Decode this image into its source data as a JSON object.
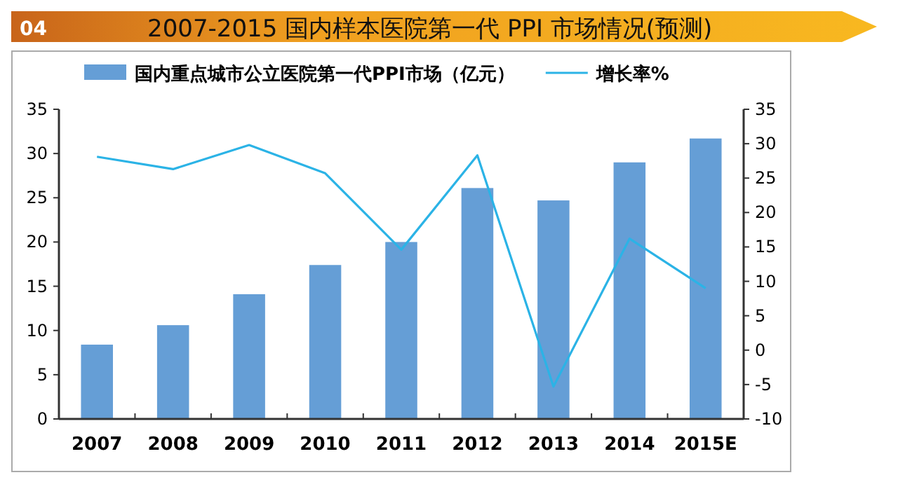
{
  "chart_data": {
    "type": "bar",
    "title": "2007-2015 国内样本医院第一代 PPI 市场情况(预测)",
    "annotations": [
      "04"
    ],
    "categories": [
      "2007",
      "2008",
      "2009",
      "2010",
      "2011",
      "2012",
      "2013",
      "2014",
      "2015E"
    ],
    "series": [
      {
        "name": "国内重点城市公立医院第一代PPI市场（亿元）",
        "color": "#659ed6",
        "values": [
          8.4,
          10.6,
          14.1,
          17.4,
          20.0,
          26.1,
          24.7,
          29.0,
          31.7
        ]
      },
      {
        "name": "增长率%",
        "type": "line",
        "axis": "y2",
        "color": "#2bb3e6",
        "values": [
          28.1,
          26.3,
          29.8,
          25.7,
          14.6,
          28.3,
          -5.3,
          16.2,
          9.0
        ]
      }
    ],
    "ylim": [
      0,
      35
    ],
    "yticks": [
      0,
      5,
      10,
      15,
      20,
      25,
      30,
      35
    ],
    "y2lim": [
      -10,
      35
    ],
    "y2ticks": [
      -10,
      -5,
      0,
      5,
      10,
      15,
      20,
      25,
      30,
      35
    ],
    "grid": false,
    "legend": "top",
    "marker": "none",
    "line_style": "solid"
  }
}
